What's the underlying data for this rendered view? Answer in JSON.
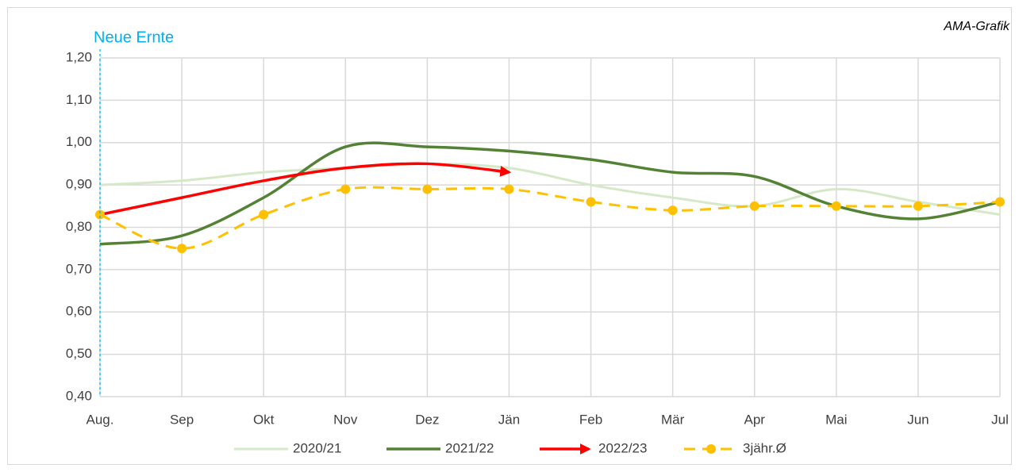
{
  "chart_data": {
    "type": "line",
    "annotations": [
      "Neue Ernte",
      "AMA-Grafik"
    ],
    "categories": [
      "Aug.",
      "Sep",
      "Okt",
      "Nov",
      "Dez",
      "Jän",
      "Feb",
      "Mär",
      "Apr",
      "Mai",
      "Jun",
      "Jul"
    ],
    "series": [
      {
        "name": "2020/21",
        "color": "#d5e8c8",
        "values": [
          0.9,
          0.91,
          0.93,
          0.94,
          0.95,
          0.94,
          0.9,
          0.87,
          0.85,
          0.89,
          0.86,
          0.83
        ]
      },
      {
        "name": "2021/22",
        "color": "#548235",
        "values": [
          0.76,
          0.78,
          0.87,
          0.99,
          0.99,
          0.98,
          0.96,
          0.93,
          0.92,
          0.85,
          0.82,
          0.86
        ]
      },
      {
        "name": "2022/23",
        "color": "#ff0000",
        "values": [
          0.83,
          0.87,
          0.91,
          0.94,
          0.95,
          0.93,
          null,
          null,
          null,
          null,
          null,
          null
        ]
      },
      {
        "name": "3jähr.Ø",
        "color": "#ffc000",
        "values": [
          0.83,
          0.75,
          0.83,
          0.89,
          0.89,
          0.89,
          0.86,
          0.84,
          0.85,
          0.85,
          0.85,
          0.86
        ]
      }
    ],
    "ylim": [
      0.4,
      1.2
    ],
    "yticks": [
      {
        "value": 0.4,
        "label": "0,40"
      },
      {
        "value": 0.5,
        "label": "0,50"
      },
      {
        "value": 0.6,
        "label": "0,60"
      },
      {
        "value": 0.7,
        "label": "0,70"
      },
      {
        "value": 0.8,
        "label": "0,80"
      },
      {
        "value": 0.9,
        "label": "0,90"
      },
      {
        "value": 1.0,
        "label": "1,00"
      },
      {
        "value": 1.1,
        "label": "1,10"
      },
      {
        "value": 1.2,
        "label": "1,20"
      }
    ],
    "grid": true,
    "legend": "bottom"
  }
}
